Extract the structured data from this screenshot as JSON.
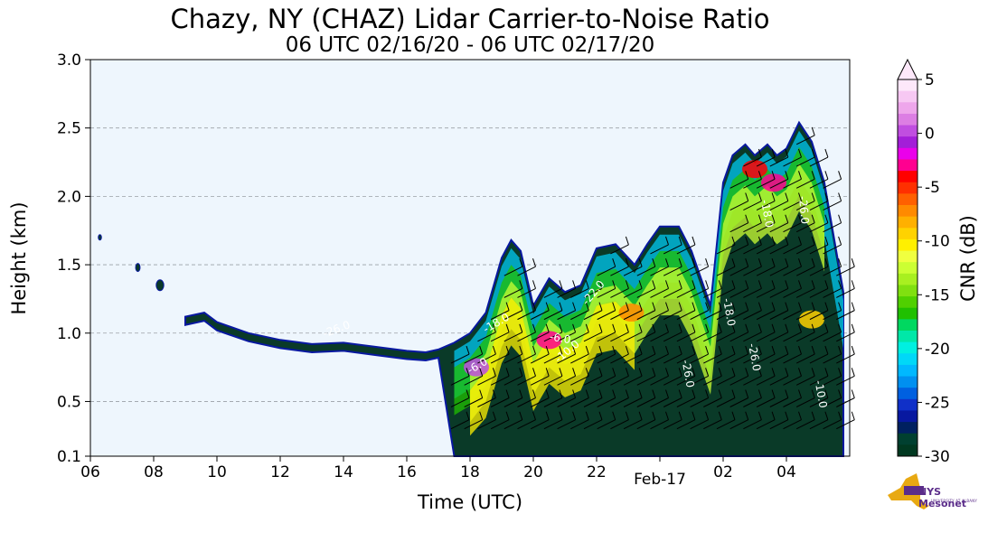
{
  "chart_data": {
    "type": "heatmap",
    "title": "Chazy, NY (CHAZ) Lidar Carrier-to-Noise Ratio",
    "subtitle": "06 UTC 02/16/20 - 06 UTC 02/17/20",
    "xlabel": "Time (UTC)",
    "ylabel": "Height (km)",
    "x_range_hours": [
      6,
      30
    ],
    "x_ticks": [
      {
        "hour": 6,
        "label": "06"
      },
      {
        "hour": 8,
        "label": "08"
      },
      {
        "hour": 10,
        "label": "10"
      },
      {
        "hour": 12,
        "label": "12"
      },
      {
        "hour": 14,
        "label": "14"
      },
      {
        "hour": 16,
        "label": "16"
      },
      {
        "hour": 18,
        "label": "18"
      },
      {
        "hour": 20,
        "label": "20"
      },
      {
        "hour": 22,
        "label": "22"
      },
      {
        "hour": 24,
        "label": "Feb-17"
      },
      {
        "hour": 26,
        "label": "02"
      },
      {
        "hour": 28,
        "label": "04"
      }
    ],
    "ylim": [
      0.1,
      3.0
    ],
    "y_ticks": [
      "0.1",
      "0.5",
      "1.0",
      "1.5",
      "2.0",
      "2.5",
      "3.0"
    ],
    "y_tick_values": [
      0.1,
      0.5,
      1.0,
      1.5,
      2.0,
      2.5,
      3.0
    ],
    "grid": "horizontal dashed",
    "colorbar": {
      "label": "CNR (dB)",
      "range": [
        -30,
        5
      ],
      "extend": "max",
      "ticks": [
        "5",
        "0",
        "-5",
        "-10",
        "-15",
        "-20",
        "-25",
        "-30"
      ],
      "tick_values": [
        5,
        0,
        -5,
        -10,
        -15,
        -20,
        -25,
        -30
      ],
      "colors": [
        "#fde8fa",
        "#f7c8f3",
        "#eea6eb",
        "#dc7ee3",
        "#c04ee0",
        "#a31ed8",
        "#ea00ea",
        "#ff0090",
        "#ff0000",
        "#ff3000",
        "#ff6000",
        "#ff8a00",
        "#ffb000",
        "#ffd200",
        "#fff000",
        "#f0ff40",
        "#ccff33",
        "#a8f020",
        "#80e010",
        "#50d000",
        "#20c000",
        "#00d860",
        "#00e8a8",
        "#00f0e0",
        "#00d8f8",
        "#00b8ff",
        "#0090f0",
        "#0060e0",
        "#1030c8",
        "#0818a0",
        "#002060",
        "#004030",
        "#003820"
      ]
    },
    "contour_labels": [
      "-26.0",
      "-6.0",
      "-18.0",
      "-10.0",
      "-22.0",
      "-26.0",
      "-18.0",
      "-26.0",
      "-18.0",
      "-10.0",
      "-6.0",
      "-26.0"
    ],
    "cloud_profile": {
      "description": "signal top height (km) vs hour",
      "hours": [
        6.2,
        7.5,
        8.2,
        9.0,
        9.6,
        10.0,
        11.0,
        12.0,
        13.0,
        14.0,
        15.0,
        16.0,
        16.6,
        17.0,
        17.5,
        18.0,
        18.5,
        19.0,
        19.3,
        19.6,
        20.0,
        20.5,
        21.0,
        21.5,
        22.0,
        22.6,
        23.2,
        23.6,
        24.0,
        24.6,
        25.0,
        25.6,
        26.0,
        26.3,
        26.7,
        27.0,
        27.4,
        27.7,
        28.0,
        28.4,
        28.8,
        29.2,
        29.8
      ],
      "top_km": [
        1.7,
        1.48,
        1.35,
        1.12,
        1.15,
        1.08,
        1.0,
        0.95,
        0.92,
        0.93,
        0.9,
        0.87,
        0.86,
        0.88,
        0.93,
        1.0,
        1.15,
        1.55,
        1.68,
        1.6,
        1.2,
        1.4,
        1.3,
        1.35,
        1.62,
        1.65,
        1.5,
        1.65,
        1.78,
        1.78,
        1.6,
        1.2,
        2.1,
        2.3,
        2.38,
        2.3,
        2.38,
        2.3,
        2.35,
        2.54,
        2.4,
        2.1,
        1.3
      ]
    }
  },
  "logo": {
    "text": "NYS Mesonet",
    "subtext": "UNIVERSITY AT ALBANY"
  }
}
